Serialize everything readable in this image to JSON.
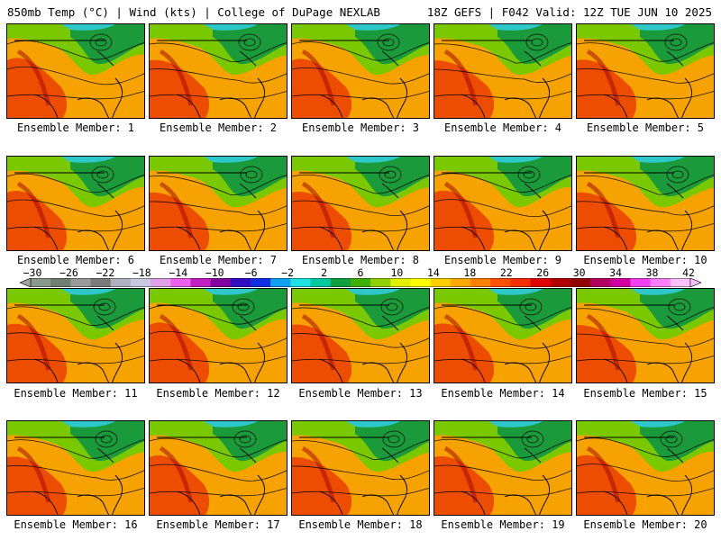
{
  "header": {
    "left": "850mb Temp (°C) | Wind (kts) | College of DuPage NEXLAB",
    "right": "18Z GEFS | F042 Valid: 12Z TUE JUN 10 2025"
  },
  "members": [
    "Ensemble Member: 1",
    "Ensemble Member: 2",
    "Ensemble Member: 3",
    "Ensemble Member: 4",
    "Ensemble Member: 5",
    "Ensemble Member: 6",
    "Ensemble Member: 7",
    "Ensemble Member: 8",
    "Ensemble Member: 9",
    "Ensemble Member: 10",
    "Ensemble Member: 11",
    "Ensemble Member: 12",
    "Ensemble Member: 13",
    "Ensemble Member: 14",
    "Ensemble Member: 15",
    "Ensemble Member: 16",
    "Ensemble Member: 17",
    "Ensemble Member: 18",
    "Ensemble Member: 19",
    "Ensemble Member: 20"
  ],
  "colorbar": {
    "labels": [
      "−30",
      "−26",
      "−22",
      "−18",
      "−14",
      "−10",
      "−6",
      "−2",
      "2",
      "6",
      "10",
      "14",
      "18",
      "22",
      "26",
      "30",
      "34",
      "38",
      "42"
    ],
    "colors": [
      "#8a9a8a",
      "#6f7f6f",
      "#9a9a9a",
      "#7a7a7a",
      "#b0b0c0",
      "#c8c8e0",
      "#e0a0e8",
      "#f060f0",
      "#c020c0",
      "#8000a0",
      "#3010c0",
      "#1030e0",
      "#10a0f0",
      "#20e0e0",
      "#00c8a0",
      "#10a040",
      "#40b000",
      "#90d000",
      "#e0f000",
      "#ffff00",
      "#ffd000",
      "#ffa800",
      "#ff8000",
      "#ff5000",
      "#f03000",
      "#e00000",
      "#b00000",
      "#900000",
      "#b00060",
      "#d000a0",
      "#f040f0",
      "#ff80ff",
      "#ffc0ff"
    ]
  },
  "palette": {
    "cold": "#2fc8c8",
    "cool": "#1a9a3a",
    "mild": "#7ac800",
    "warm": "#f6a200",
    "hot": "#e83000",
    "land_border": "#000000"
  }
}
